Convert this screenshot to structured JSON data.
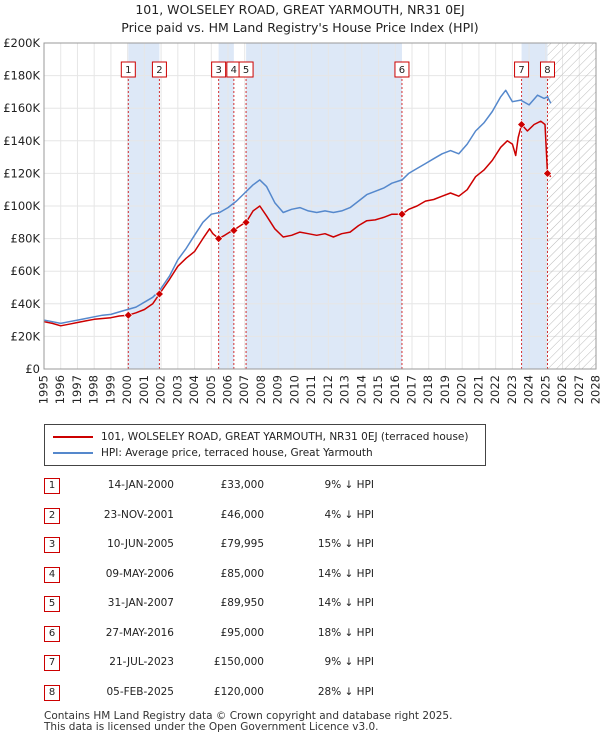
{
  "chart_data": {
    "type": "line",
    "title": "101, WOLSELEY ROAD, GREAT YARMOUTH, NR31 0EJ",
    "subtitle": "Price paid vs. HM Land Registry's House Price Index (HPI)",
    "xlim": [
      1995,
      2028
    ],
    "ylim": [
      0,
      200000
    ],
    "x_ticks": [
      "1995",
      "1996",
      "1997",
      "1998",
      "1999",
      "2000",
      "2001",
      "2002",
      "2003",
      "2004",
      "2005",
      "2006",
      "2007",
      "2008",
      "2009",
      "2010",
      "2011",
      "2012",
      "2013",
      "2014",
      "2015",
      "2016",
      "2017",
      "2018",
      "2019",
      "2020",
      "2021",
      "2022",
      "2023",
      "2024",
      "2025",
      "2026",
      "2027",
      "2028"
    ],
    "y_ticks": [
      {
        "value": 0,
        "label": "£0"
      },
      {
        "value": 20000,
        "label": "£20K"
      },
      {
        "value": 40000,
        "label": "£40K"
      },
      {
        "value": 60000,
        "label": "£60K"
      },
      {
        "value": 80000,
        "label": "£80K"
      },
      {
        "value": 100000,
        "label": "£100K"
      },
      {
        "value": 120000,
        "label": "£120K"
      },
      {
        "value": 140000,
        "label": "£140K"
      },
      {
        "value": 160000,
        "label": "£160K"
      },
      {
        "value": 180000,
        "label": "£180K"
      },
      {
        "value": 200000,
        "label": "£200K"
      }
    ],
    "hatched_region_start": 2025.1,
    "series": [
      {
        "name": "101, WOLSELEY ROAD, GREAT YARMOUTH, NR31 0EJ (terraced house)",
        "color": "#cc0000",
        "points": [
          [
            1995.0,
            29000
          ],
          [
            1995.5,
            28000
          ],
          [
            1996.0,
            26500
          ],
          [
            1996.5,
            27500
          ],
          [
            1997.0,
            28500
          ],
          [
            1997.5,
            29500
          ],
          [
            1998.0,
            30500
          ],
          [
            1998.5,
            31000
          ],
          [
            1999.0,
            31500
          ],
          [
            1999.5,
            32500
          ],
          [
            2000.04,
            33000
          ],
          [
            2000.5,
            34500
          ],
          [
            2001.0,
            36500
          ],
          [
            2001.5,
            40000
          ],
          [
            2001.9,
            46000
          ],
          [
            2002.5,
            55000
          ],
          [
            2003.0,
            63000
          ],
          [
            2003.5,
            68000
          ],
          [
            2004.0,
            72000
          ],
          [
            2004.5,
            80000
          ],
          [
            2004.9,
            86000
          ],
          [
            2005.1,
            83000
          ],
          [
            2005.44,
            79995
          ],
          [
            2005.8,
            82000
          ],
          [
            2006.1,
            84000
          ],
          [
            2006.35,
            85000
          ],
          [
            2006.6,
            87000
          ],
          [
            2006.9,
            89000
          ],
          [
            2007.08,
            89950
          ],
          [
            2007.5,
            97000
          ],
          [
            2007.9,
            100000
          ],
          [
            2008.3,
            94000
          ],
          [
            2008.8,
            86000
          ],
          [
            2009.3,
            81000
          ],
          [
            2009.8,
            82000
          ],
          [
            2010.3,
            84000
          ],
          [
            2010.8,
            83000
          ],
          [
            2011.3,
            82000
          ],
          [
            2011.8,
            83000
          ],
          [
            2012.3,
            81000
          ],
          [
            2012.8,
            83000
          ],
          [
            2013.3,
            84000
          ],
          [
            2013.8,
            88000
          ],
          [
            2014.3,
            91000
          ],
          [
            2014.8,
            91500
          ],
          [
            2015.3,
            93000
          ],
          [
            2015.8,
            95000
          ],
          [
            2016.4,
            95000
          ],
          [
            2016.8,
            98000
          ],
          [
            2017.3,
            100000
          ],
          [
            2017.8,
            103000
          ],
          [
            2018.3,
            104000
          ],
          [
            2018.8,
            106000
          ],
          [
            2019.3,
            108000
          ],
          [
            2019.8,
            106000
          ],
          [
            2020.3,
            110000
          ],
          [
            2020.8,
            118000
          ],
          [
            2021.3,
            122000
          ],
          [
            2021.8,
            128000
          ],
          [
            2022.3,
            136000
          ],
          [
            2022.7,
            140000
          ],
          [
            2023.0,
            138000
          ],
          [
            2023.2,
            131000
          ],
          [
            2023.35,
            142000
          ],
          [
            2023.55,
            150000
          ],
          [
            2023.9,
            146000
          ],
          [
            2024.3,
            150000
          ],
          [
            2024.7,
            152000
          ],
          [
            2024.95,
            150000
          ],
          [
            2025.1,
            120000
          ],
          [
            2025.3,
            118000
          ]
        ]
      },
      {
        "name": "HPI: Average price, terraced house, Great Yarmouth",
        "color": "#5588cc",
        "points": [
          [
            1995.0,
            30000
          ],
          [
            1995.5,
            29000
          ],
          [
            1996.0,
            28000
          ],
          [
            1996.5,
            29000
          ],
          [
            1997.0,
            30000
          ],
          [
            1997.5,
            31000
          ],
          [
            1998.0,
            32000
          ],
          [
            1998.5,
            33000
          ],
          [
            1999.0,
            33500
          ],
          [
            1999.5,
            35000
          ],
          [
            2000.0,
            36500
          ],
          [
            2000.5,
            38000
          ],
          [
            2001.0,
            41000
          ],
          [
            2001.5,
            44000
          ],
          [
            2001.9,
            48000
          ],
          [
            2002.5,
            57000
          ],
          [
            2003.0,
            67000
          ],
          [
            2003.5,
            74000
          ],
          [
            2004.0,
            82000
          ],
          [
            2004.5,
            90000
          ],
          [
            2005.0,
            95000
          ],
          [
            2005.5,
            96000
          ],
          [
            2006.0,
            99000
          ],
          [
            2006.5,
            103000
          ],
          [
            2007.0,
            108000
          ],
          [
            2007.5,
            113000
          ],
          [
            2007.9,
            116000
          ],
          [
            2008.3,
            112000
          ],
          [
            2008.8,
            102000
          ],
          [
            2009.3,
            96000
          ],
          [
            2009.8,
            98000
          ],
          [
            2010.3,
            99000
          ],
          [
            2010.8,
            97000
          ],
          [
            2011.3,
            96000
          ],
          [
            2011.8,
            97000
          ],
          [
            2012.3,
            96000
          ],
          [
            2012.8,
            97000
          ],
          [
            2013.3,
            99000
          ],
          [
            2013.8,
            103000
          ],
          [
            2014.3,
            107000
          ],
          [
            2014.8,
            109000
          ],
          [
            2015.3,
            111000
          ],
          [
            2015.8,
            114000
          ],
          [
            2016.4,
            116000
          ],
          [
            2016.8,
            120000
          ],
          [
            2017.3,
            123000
          ],
          [
            2017.8,
            126000
          ],
          [
            2018.3,
            129000
          ],
          [
            2018.8,
            132000
          ],
          [
            2019.3,
            134000
          ],
          [
            2019.8,
            132000
          ],
          [
            2020.3,
            138000
          ],
          [
            2020.8,
            146000
          ],
          [
            2021.3,
            151000
          ],
          [
            2021.8,
            158000
          ],
          [
            2022.3,
            167000
          ],
          [
            2022.6,
            171000
          ],
          [
            2023.0,
            164000
          ],
          [
            2023.5,
            165000
          ],
          [
            2024.0,
            162000
          ],
          [
            2024.5,
            168000
          ],
          [
            2024.9,
            166000
          ],
          [
            2025.1,
            167000
          ],
          [
            2025.3,
            163000
          ]
        ]
      }
    ],
    "sales": [
      {
        "n": "1",
        "date": "14-JAN-2000",
        "price": "£33,000",
        "hpi": "9% ↓ HPI",
        "x": 2000.04,
        "y": 33000
      },
      {
        "n": "2",
        "date": "23-NOV-2001",
        "price": "£46,000",
        "hpi": "4% ↓ HPI",
        "x": 2001.9,
        "y": 46000
      },
      {
        "n": "3",
        "date": "10-JUN-2005",
        "price": "£79,995",
        "hpi": "15% ↓ HPI",
        "x": 2005.44,
        "y": 79995
      },
      {
        "n": "4",
        "date": "09-MAY-2006",
        "price": "£85,000",
        "hpi": "14% ↓ HPI",
        "x": 2006.35,
        "y": 85000
      },
      {
        "n": "5",
        "date": "31-JAN-2007",
        "price": "£89,950",
        "hpi": "14% ↓ HPI",
        "x": 2007.08,
        "y": 89950
      },
      {
        "n": "6",
        "date": "27-MAY-2016",
        "price": "£95,000",
        "hpi": "18% ↓ HPI",
        "x": 2016.4,
        "y": 95000
      },
      {
        "n": "7",
        "date": "21-JUL-2023",
        "price": "£150,000",
        "hpi": "9% ↓ HPI",
        "x": 2023.55,
        "y": 150000
      },
      {
        "n": "8",
        "date": "05-FEB-2025",
        "price": "£120,000",
        "hpi": "28% ↓ HPI",
        "x": 2025.1,
        "y": 120000
      }
    ]
  },
  "legend": {
    "property_label": "101, WOLSELEY ROAD, GREAT YARMOUTH, NR31 0EJ (terraced house)",
    "hpi_label": "HPI: Average price, terraced house, Great Yarmouth"
  },
  "colors": {
    "property": "#cc0000",
    "hpi": "#5588cc",
    "shade": "#dde8f7"
  },
  "footer": {
    "line1": "Contains HM Land Registry data © Crown copyright and database right 2025.",
    "line2": "This data is licensed under the Open Government Licence v3.0."
  }
}
